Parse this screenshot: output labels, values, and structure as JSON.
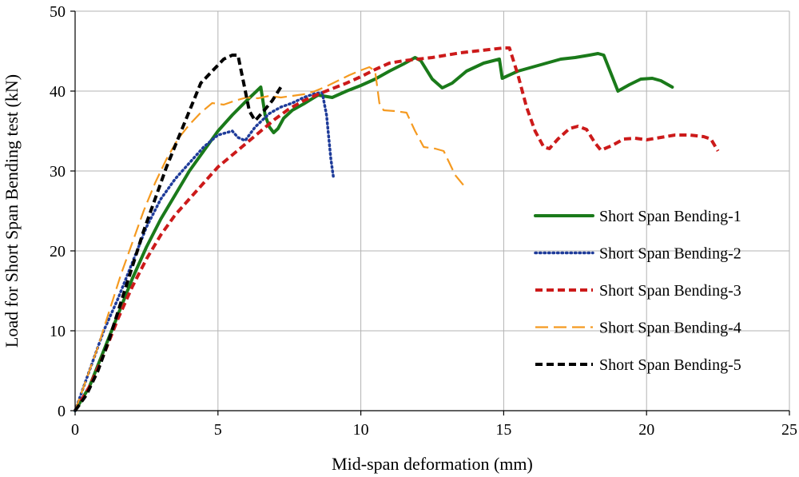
{
  "chart_data": {
    "type": "line",
    "title": "",
    "xlabel": "Mid-span deformation (mm)",
    "ylabel": "Load for Short Span Bending test (kN)",
    "xlim": [
      0,
      25
    ],
    "ylim": [
      0,
      50
    ],
    "xticks": [
      0,
      5,
      10,
      15,
      20,
      25
    ],
    "yticks": [
      0,
      10,
      20,
      30,
      40,
      50
    ],
    "grid": true,
    "legend_position": "right",
    "series": [
      {
        "name": "Short Span Bending-1",
        "color": "#1a7a1a",
        "dash": "solid",
        "points": [
          [
            0,
            0
          ],
          [
            0.5,
            3
          ],
          [
            1,
            7.5
          ],
          [
            1.5,
            12
          ],
          [
            2,
            16.5
          ],
          [
            2.5,
            20.5
          ],
          [
            3,
            24
          ],
          [
            3.5,
            27
          ],
          [
            4,
            30
          ],
          [
            4.5,
            32.5
          ],
          [
            5,
            35
          ],
          [
            5.5,
            37
          ],
          [
            6,
            38.8
          ],
          [
            6.5,
            40.5
          ],
          [
            6.65,
            37
          ],
          [
            6.8,
            35.5
          ],
          [
            6.95,
            34.8
          ],
          [
            7.1,
            35.3
          ],
          [
            7.3,
            36.6
          ],
          [
            7.6,
            37.6
          ],
          [
            8,
            38.4
          ],
          [
            8.5,
            39.5
          ],
          [
            9,
            39.2
          ],
          [
            9.5,
            40
          ],
          [
            10,
            40.7
          ],
          [
            10.5,
            41.5
          ],
          [
            11,
            42.5
          ],
          [
            11.5,
            43.4
          ],
          [
            11.9,
            44.2
          ],
          [
            12.1,
            43.8
          ],
          [
            12.5,
            41.5
          ],
          [
            12.85,
            40.4
          ],
          [
            13.2,
            41
          ],
          [
            13.7,
            42.5
          ],
          [
            14.3,
            43.5
          ],
          [
            14.85,
            44
          ],
          [
            14.95,
            41.6
          ],
          [
            15.5,
            42.5
          ],
          [
            16,
            43
          ],
          [
            16.5,
            43.5
          ],
          [
            17,
            44
          ],
          [
            17.5,
            44.2
          ],
          [
            18,
            44.5
          ],
          [
            18.3,
            44.7
          ],
          [
            18.5,
            44.5
          ],
          [
            18.8,
            41.8
          ],
          [
            19,
            40
          ],
          [
            19.4,
            40.8
          ],
          [
            19.8,
            41.5
          ],
          [
            20.2,
            41.6
          ],
          [
            20.5,
            41.3
          ],
          [
            20.9,
            40.5
          ]
        ]
      },
      {
        "name": "Short Span Bending-2",
        "color": "#1f3c9a",
        "dash": "dotted",
        "points": [
          [
            0,
            0
          ],
          [
            0.3,
            3
          ],
          [
            0.6,
            6
          ],
          [
            1,
            10
          ],
          [
            1.5,
            14
          ],
          [
            2,
            18.5
          ],
          [
            2.5,
            23
          ],
          [
            3,
            26.5
          ],
          [
            3.5,
            29
          ],
          [
            4,
            31
          ],
          [
            4.5,
            33
          ],
          [
            5,
            34.5
          ],
          [
            5.5,
            35
          ],
          [
            5.7,
            34.2
          ],
          [
            5.95,
            33.8
          ],
          [
            6.3,
            35.5
          ],
          [
            6.8,
            37.2
          ],
          [
            7.2,
            38
          ],
          [
            7.6,
            38.5
          ],
          [
            8,
            39.2
          ],
          [
            8.4,
            39.7
          ],
          [
            8.65,
            39.8
          ],
          [
            8.8,
            37
          ],
          [
            8.95,
            31.5
          ],
          [
            9.05,
            29
          ]
        ]
      },
      {
        "name": "Short Span Bending-3",
        "color": "#cc1a1a",
        "dash": "dashed",
        "points": [
          [
            0,
            0
          ],
          [
            0.5,
            3
          ],
          [
            1,
            7
          ],
          [
            1.5,
            11.5
          ],
          [
            2,
            15.5
          ],
          [
            2.5,
            19
          ],
          [
            3,
            22
          ],
          [
            3.5,
            24.5
          ],
          [
            4,
            26.5
          ],
          [
            4.5,
            28.5
          ],
          [
            5,
            30.5
          ],
          [
            5.5,
            32
          ],
          [
            6,
            33.5
          ],
          [
            6.5,
            35
          ],
          [
            7,
            36.5
          ],
          [
            7.5,
            37.8
          ],
          [
            8,
            38.8
          ],
          [
            8.5,
            39.6
          ],
          [
            9,
            40.3
          ],
          [
            9.5,
            41
          ],
          [
            10,
            41.8
          ],
          [
            10.5,
            42.7
          ],
          [
            11,
            43.5
          ],
          [
            11.5,
            43.8
          ],
          [
            12,
            44
          ],
          [
            12.5,
            44.2
          ],
          [
            13,
            44.5
          ],
          [
            13.5,
            44.8
          ],
          [
            14,
            45
          ],
          [
            14.5,
            45.2
          ],
          [
            15,
            45.4
          ],
          [
            15.2,
            45.4
          ],
          [
            15.5,
            42
          ],
          [
            15.8,
            38
          ],
          [
            16.1,
            35
          ],
          [
            16.4,
            33
          ],
          [
            16.6,
            32.8
          ],
          [
            16.9,
            34
          ],
          [
            17.3,
            35.3
          ],
          [
            17.6,
            35.6
          ],
          [
            17.9,
            35.2
          ],
          [
            18.2,
            33.5
          ],
          [
            18.4,
            32.6
          ],
          [
            18.8,
            33.2
          ],
          [
            19.2,
            34
          ],
          [
            19.6,
            34.1
          ],
          [
            20,
            33.9
          ],
          [
            20.5,
            34.2
          ],
          [
            21,
            34.5
          ],
          [
            21.5,
            34.5
          ],
          [
            22,
            34.3
          ],
          [
            22.25,
            34
          ],
          [
            22.5,
            32.5
          ]
        ]
      },
      {
        "name": "Short Span Bending-4",
        "color": "#f59a20",
        "dash": "longdash",
        "points": [
          [
            0,
            0
          ],
          [
            0.4,
            4
          ],
          [
            0.8,
            8
          ],
          [
            1.2,
            12.5
          ],
          [
            1.6,
            17
          ],
          [
            2,
            21
          ],
          [
            2.4,
            25
          ],
          [
            2.8,
            28.5
          ],
          [
            3.2,
            31.5
          ],
          [
            3.6,
            34
          ],
          [
            4,
            35.8
          ],
          [
            4.4,
            37.3
          ],
          [
            4.8,
            38.5
          ],
          [
            5.2,
            38.3
          ],
          [
            5.6,
            38.8
          ],
          [
            6,
            39.2
          ],
          [
            6.4,
            39.1
          ],
          [
            6.8,
            39.4
          ],
          [
            7.2,
            39.2
          ],
          [
            7.6,
            39.4
          ],
          [
            8,
            39.6
          ],
          [
            8.4,
            40
          ],
          [
            8.8,
            40.6
          ],
          [
            9.2,
            41.3
          ],
          [
            9.6,
            42
          ],
          [
            10,
            42.6
          ],
          [
            10.3,
            43
          ],
          [
            10.5,
            42.5
          ],
          [
            10.65,
            38.5
          ],
          [
            10.8,
            37.6
          ],
          [
            11.2,
            37.5
          ],
          [
            11.6,
            37.3
          ],
          [
            11.9,
            35
          ],
          [
            12.2,
            33
          ],
          [
            12.6,
            32.8
          ],
          [
            12.9,
            32.5
          ],
          [
            13.1,
            31
          ],
          [
            13.3,
            29.5
          ],
          [
            13.6,
            28.2
          ]
        ]
      },
      {
        "name": "Short Span Bending-5",
        "color": "#000000",
        "dash": "dashed",
        "points": [
          [
            0,
            0
          ],
          [
            0.4,
            2
          ],
          [
            0.8,
            5
          ],
          [
            1.2,
            9
          ],
          [
            1.6,
            13.5
          ],
          [
            2,
            18
          ],
          [
            2.4,
            22.5
          ],
          [
            2.8,
            26.5
          ],
          [
            3.2,
            30.5
          ],
          [
            3.6,
            34
          ],
          [
            4,
            37.5
          ],
          [
            4.4,
            41
          ],
          [
            4.8,
            42.5
          ],
          [
            5.2,
            44
          ],
          [
            5.5,
            44.5
          ],
          [
            5.7,
            44.5
          ],
          [
            5.9,
            41
          ],
          [
            6.1,
            37.5
          ],
          [
            6.3,
            36.3
          ],
          [
            6.6,
            37.5
          ],
          [
            6.9,
            38.8
          ],
          [
            7.2,
            40.5
          ]
        ]
      }
    ]
  }
}
